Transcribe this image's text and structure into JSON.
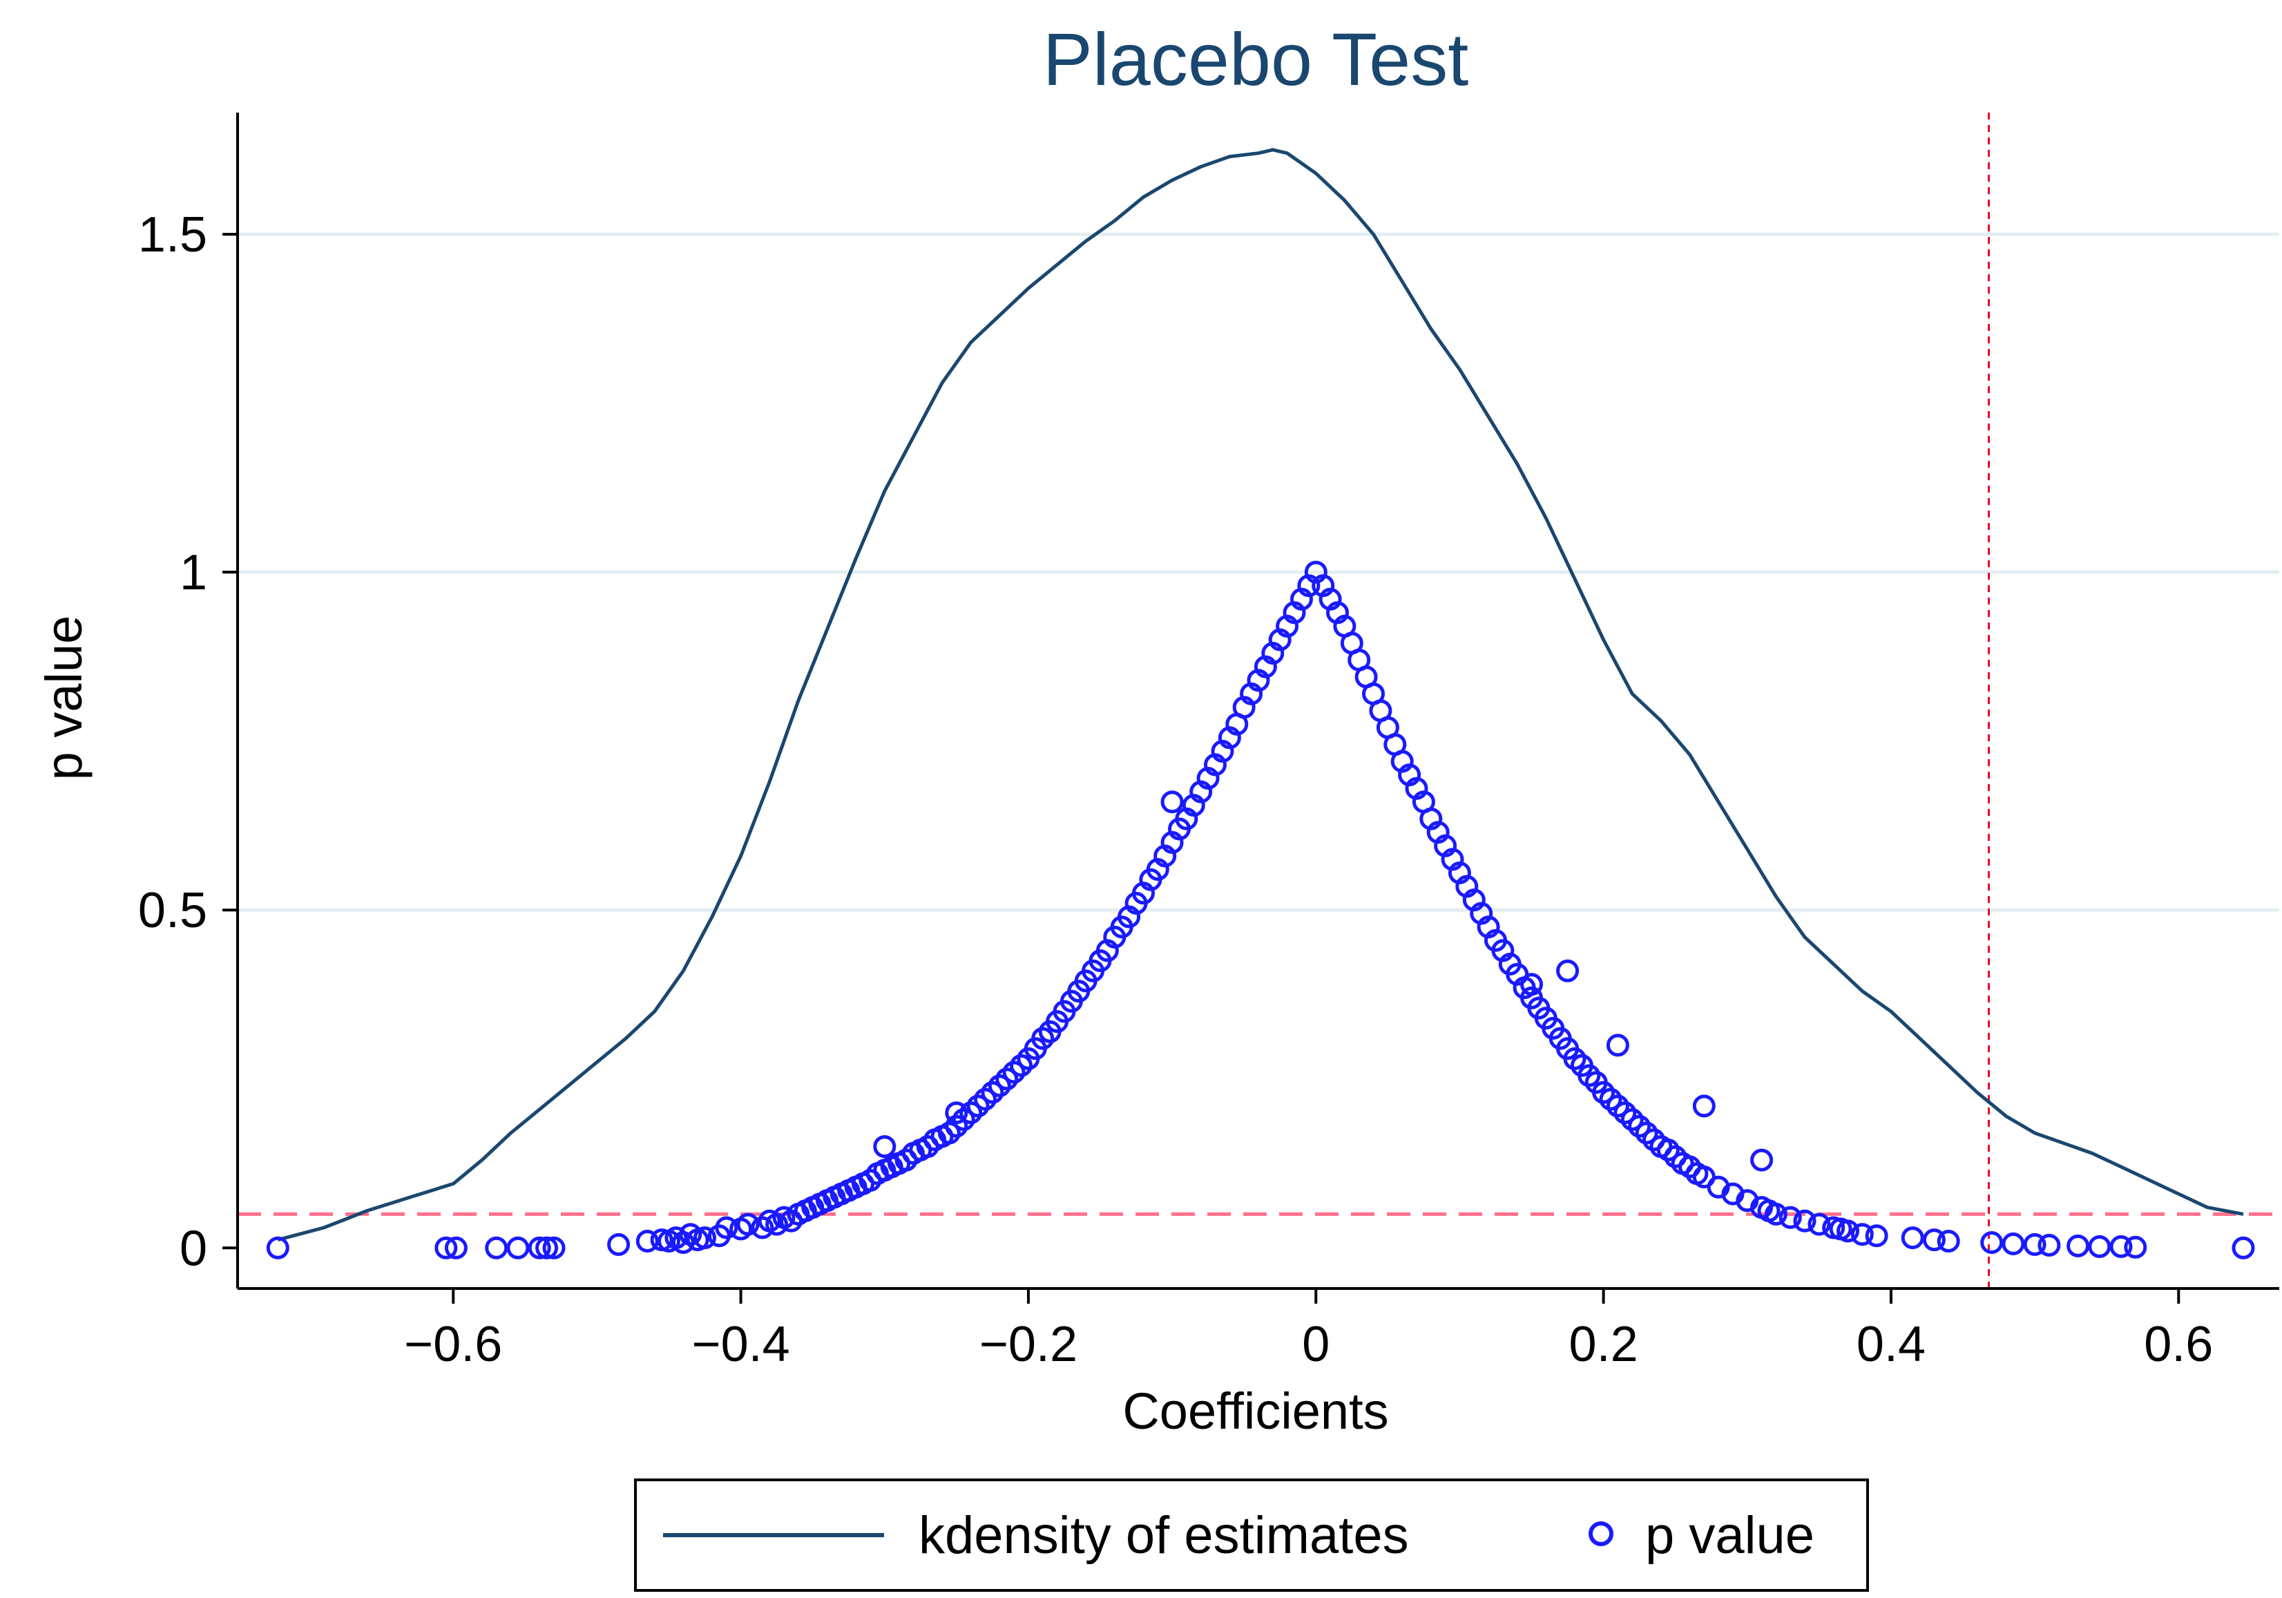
{
  "chart_data": {
    "type": "scatter",
    "title": "Placebo Test",
    "xlabel": "Coefficients",
    "ylabel": "p value",
    "xlim": [
      -0.75,
      0.67
    ],
    "ylim": [
      -0.06,
      1.68
    ],
    "xticks": [
      -0.6,
      -0.4,
      -0.2,
      0,
      0.2,
      0.4,
      0.6
    ],
    "xtick_labels": [
      "−0.6",
      "−0.4",
      "−0.2",
      "0",
      "0.2",
      "0.4",
      "0.6"
    ],
    "yticks": [
      0,
      0.5,
      1,
      1.5
    ],
    "ytick_labels": [
      "0",
      "0.5",
      "1",
      "1.5"
    ],
    "grid": "horizontal",
    "legend_position": "bottom",
    "reference_lines": {
      "horizontal": {
        "value": 0.05,
        "style": "dashed",
        "color": "#ff6f8c"
      },
      "vertical": {
        "value": 0.468,
        "style": "dashed",
        "color": "#e8002a"
      }
    },
    "series": [
      {
        "name": "kdensity of estimates",
        "kind": "line",
        "color": "#1a476f",
        "x": [
          -0.722,
          -0.69,
          -0.66,
          -0.63,
          -0.6,
          -0.58,
          -0.56,
          -0.54,
          -0.52,
          -0.5,
          -0.48,
          -0.46,
          -0.44,
          -0.42,
          -0.4,
          -0.38,
          -0.36,
          -0.34,
          -0.32,
          -0.3,
          -0.28,
          -0.26,
          -0.24,
          -0.22,
          -0.2,
          -0.18,
          -0.16,
          -0.14,
          -0.12,
          -0.1,
          -0.08,
          -0.06,
          -0.04,
          -0.03,
          -0.02,
          0,
          0.02,
          0.04,
          0.06,
          0.08,
          0.1,
          0.12,
          0.14,
          0.16,
          0.18,
          0.2,
          0.22,
          0.24,
          0.26,
          0.28,
          0.3,
          0.32,
          0.34,
          0.36,
          0.38,
          0.4,
          0.42,
          0.44,
          0.46,
          0.48,
          0.5,
          0.52,
          0.54,
          0.56,
          0.58,
          0.6,
          0.62,
          0.645
        ],
        "y": [
          0.012,
          0.03,
          0.055,
          0.075,
          0.095,
          0.13,
          0.17,
          0.205,
          0.24,
          0.275,
          0.31,
          0.35,
          0.41,
          0.49,
          0.58,
          0.69,
          0.81,
          0.915,
          1.02,
          1.12,
          1.2,
          1.28,
          1.34,
          1.38,
          1.42,
          1.455,
          1.49,
          1.52,
          1.555,
          1.58,
          1.6,
          1.615,
          1.62,
          1.625,
          1.62,
          1.59,
          1.55,
          1.5,
          1.43,
          1.36,
          1.3,
          1.23,
          1.16,
          1.08,
          0.99,
          0.9,
          0.82,
          0.78,
          0.73,
          0.66,
          0.59,
          0.52,
          0.46,
          0.42,
          0.38,
          0.35,
          0.31,
          0.27,
          0.23,
          0.195,
          0.17,
          0.155,
          0.14,
          0.12,
          0.1,
          0.08,
          0.06,
          0.05
        ]
      },
      {
        "name": "p value",
        "kind": "scatter",
        "marker": "hollow-circle",
        "color": "#1a1aff",
        "x": [
          -0.722,
          -0.605,
          -0.598,
          -0.57,
          -0.555,
          -0.54,
          -0.535,
          -0.53,
          -0.485,
          -0.465,
          -0.455,
          -0.45,
          -0.445,
          -0.44,
          -0.435,
          -0.43,
          -0.425,
          -0.415,
          -0.41,
          -0.4,
          -0.395,
          -0.385,
          -0.38,
          -0.375,
          -0.37,
          -0.365,
          -0.36,
          -0.355,
          -0.35,
          -0.345,
          -0.34,
          -0.335,
          -0.33,
          -0.325,
          -0.32,
          -0.315,
          -0.31,
          -0.305,
          -0.3,
          -0.295,
          -0.29,
          -0.285,
          -0.28,
          -0.275,
          -0.27,
          -0.265,
          -0.26,
          -0.255,
          -0.25,
          -0.245,
          -0.24,
          -0.235,
          -0.23,
          -0.225,
          -0.22,
          -0.215,
          -0.21,
          -0.205,
          -0.2,
          -0.195,
          -0.19,
          -0.185,
          -0.18,
          -0.175,
          -0.17,
          -0.165,
          -0.16,
          -0.155,
          -0.15,
          -0.145,
          -0.14,
          -0.135,
          -0.13,
          -0.125,
          -0.12,
          -0.115,
          -0.11,
          -0.105,
          -0.1,
          -0.095,
          -0.09,
          -0.085,
          -0.08,
          -0.075,
          -0.07,
          -0.065,
          -0.06,
          -0.055,
          -0.05,
          -0.045,
          -0.04,
          -0.035,
          -0.03,
          -0.025,
          -0.02,
          -0.015,
          -0.01,
          -0.005,
          0,
          0.005,
          0.01,
          0.015,
          0.02,
          0.025,
          0.03,
          0.035,
          0.04,
          0.045,
          0.05,
          0.055,
          0.06,
          0.065,
          0.07,
          0.075,
          0.08,
          0.085,
          0.09,
          0.095,
          0.1,
          0.105,
          0.11,
          0.115,
          0.12,
          0.125,
          0.13,
          0.135,
          0.14,
          0.145,
          0.15,
          0.155,
          0.16,
          0.165,
          0.17,
          0.175,
          0.18,
          0.185,
          0.19,
          0.195,
          0.2,
          0.205,
          0.21,
          0.215,
          0.22,
          0.225,
          0.23,
          0.235,
          0.24,
          0.245,
          0.25,
          0.255,
          0.26,
          0.265,
          0.27,
          0.28,
          0.29,
          0.3,
          0.31,
          0.315,
          0.32,
          0.33,
          0.34,
          0.35,
          0.36,
          0.365,
          0.37,
          0.38,
          0.39,
          0.415,
          0.43,
          0.44,
          0.47,
          0.485,
          0.5,
          0.51,
          0.53,
          0.545,
          0.56,
          0.57,
          0.645,
          -0.1,
          0.175,
          -0.25,
          0.15,
          0.21,
          -0.3,
          0.27,
          0.31
        ],
        "y": [
          0.0,
          0.0,
          0.0,
          0.0,
          0.0,
          0.0,
          0.0,
          0.0,
          0.005,
          0.01,
          0.012,
          0.01,
          0.015,
          0.008,
          0.02,
          0.012,
          0.015,
          0.018,
          0.03,
          0.028,
          0.035,
          0.03,
          0.04,
          0.035,
          0.045,
          0.04,
          0.05,
          0.055,
          0.06,
          0.065,
          0.07,
          0.075,
          0.08,
          0.085,
          0.09,
          0.095,
          0.1,
          0.11,
          0.115,
          0.12,
          0.125,
          0.13,
          0.14,
          0.145,
          0.15,
          0.16,
          0.165,
          0.17,
          0.18,
          0.19,
          0.2,
          0.21,
          0.22,
          0.23,
          0.24,
          0.25,
          0.26,
          0.27,
          0.28,
          0.295,
          0.31,
          0.32,
          0.335,
          0.35,
          0.365,
          0.38,
          0.395,
          0.41,
          0.425,
          0.44,
          0.46,
          0.475,
          0.49,
          0.51,
          0.525,
          0.545,
          0.56,
          0.58,
          0.6,
          0.62,
          0.635,
          0.655,
          0.675,
          0.695,
          0.715,
          0.735,
          0.755,
          0.775,
          0.8,
          0.82,
          0.84,
          0.86,
          0.88,
          0.9,
          0.92,
          0.94,
          0.96,
          0.98,
          1.0,
          0.98,
          0.96,
          0.94,
          0.92,
          0.895,
          0.87,
          0.845,
          0.82,
          0.795,
          0.77,
          0.745,
          0.72,
          0.7,
          0.68,
          0.66,
          0.635,
          0.615,
          0.595,
          0.575,
          0.555,
          0.535,
          0.515,
          0.495,
          0.475,
          0.455,
          0.44,
          0.42,
          0.405,
          0.385,
          0.37,
          0.355,
          0.34,
          0.325,
          0.31,
          0.295,
          0.28,
          0.27,
          0.255,
          0.245,
          0.23,
          0.22,
          0.21,
          0.2,
          0.19,
          0.18,
          0.17,
          0.16,
          0.15,
          0.145,
          0.135,
          0.125,
          0.12,
          0.11,
          0.105,
          0.09,
          0.08,
          0.07,
          0.06,
          0.055,
          0.05,
          0.045,
          0.04,
          0.035,
          0.03,
          0.028,
          0.025,
          0.02,
          0.018,
          0.015,
          0.012,
          0.01,
          0.008,
          0.006,
          0.005,
          0.004,
          0.003,
          0.002,
          0.002,
          0.001,
          0.0,
          0.66,
          0.41,
          0.2,
          0.39,
          0.3,
          0.15,
          0.21,
          0.13
        ]
      }
    ],
    "legend": [
      "kdensity of estimates",
      "p value"
    ]
  }
}
